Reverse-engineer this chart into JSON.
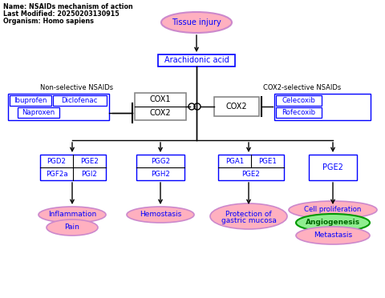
{
  "title_lines": [
    "Name: NSAIDs mechanism of action",
    "Last Modified: 20250203130915",
    "Organism: Homo sapiens"
  ],
  "bg_color": "#ffffff",
  "blue_border": "#0000ff",
  "blue_fill": "#ffffff",
  "blue_text": "#0000ff",
  "pink_fill": "#ffb0c0",
  "pink_border": "#cc88cc",
  "green_fill": "#90ee90",
  "green_border": "#009900",
  "green_text": "#006600",
  "gray_border": "#888888",
  "gray_fill": "#ffffff",
  "black": "#000000"
}
